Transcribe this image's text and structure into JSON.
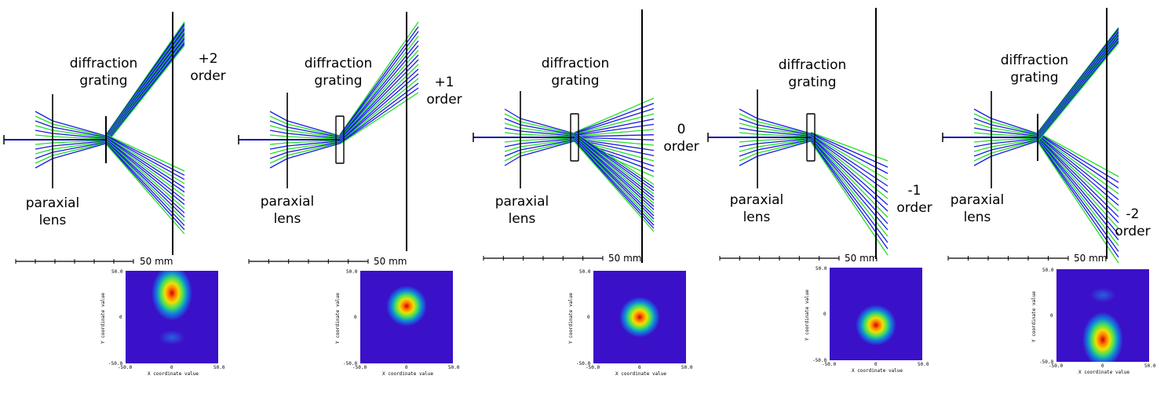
{
  "panels": [
    {
      "order_line1": "+2",
      "order_line2": "order",
      "grating_label_1": "diffraction",
      "grating_label_2": "grating",
      "lens_label_1": "paraxial",
      "lens_label_2": "lens",
      "scale_label": "50 mm",
      "spot": {
        "x_min": "-50.0",
        "x_mid": "0",
        "x_max": "50.0",
        "y_max": "50.0",
        "y_mid": "0",
        "y_min": "-50.0",
        "x_label": "X coordinate value",
        "y_label": "Y coordinate value",
        "peak_x": 0.5,
        "peak_y": 0.24,
        "secondary_y": 0.72
      }
    },
    {
      "order_line1": "+1",
      "order_line2": "order",
      "grating_label_1": "diffraction",
      "grating_label_2": "grating",
      "lens_label_1": "paraxial",
      "lens_label_2": "lens",
      "scale_label": "50 mm",
      "spot": {
        "x_min": "-50.0",
        "x_mid": "0",
        "x_max": "50.0",
        "y_max": "50.0",
        "y_mid": "0",
        "y_min": "-50.0",
        "x_label": "X coordinate value",
        "y_label": "Y coordinate value",
        "peak_x": 0.5,
        "peak_y": 0.38
      }
    },
    {
      "order_line1": "0",
      "order_line2": "order",
      "grating_label_1": "diffraction",
      "grating_label_2": "grating",
      "lens_label_1": "paraxial",
      "lens_label_2": "lens",
      "scale_label": "50 mm",
      "spot": {
        "x_min": "-50.0",
        "x_mid": "0",
        "x_max": "50.0",
        "y_max": "50.0",
        "y_mid": "0",
        "y_min": "-50.0",
        "x_label": "X coordinate value",
        "y_label": "Y coordinate value",
        "peak_x": 0.5,
        "peak_y": 0.5
      }
    },
    {
      "order_line1": "-1",
      "order_line2": "order",
      "grating_label_1": "diffraction",
      "grating_label_2": "grating",
      "lens_label_1": "paraxial",
      "lens_label_2": "lens",
      "scale_label": "50 mm",
      "spot": {
        "x_min": "-50.0",
        "x_mid": "0",
        "x_max": "50.0",
        "y_max": "50.0",
        "y_mid": "0",
        "y_min": "-50.0",
        "x_label": "X coordinate value",
        "y_label": "Y coordinate value",
        "peak_x": 0.5,
        "peak_y": 0.62
      }
    },
    {
      "order_line1": "-2",
      "order_line2": "order",
      "grating_label_1": "diffraction",
      "grating_label_2": "grating",
      "lens_label_1": "paraxial",
      "lens_label_2": "lens",
      "scale_label": "50 mm",
      "spot": {
        "x_min": "-50.0",
        "x_mid": "0",
        "x_max": "50.0",
        "y_max": "50.0",
        "y_mid": "0",
        "y_min": "-50.0",
        "x_label": "X coordinate value",
        "y_label": "Y coordinate value",
        "peak_x": 0.5,
        "peak_y": 0.76,
        "secondary_y": 0.28
      }
    }
  ],
  "colors": {
    "ray_blue": "#1a1ae6",
    "ray_green": "#22e022",
    "spot_background": "#3a10c8"
  }
}
